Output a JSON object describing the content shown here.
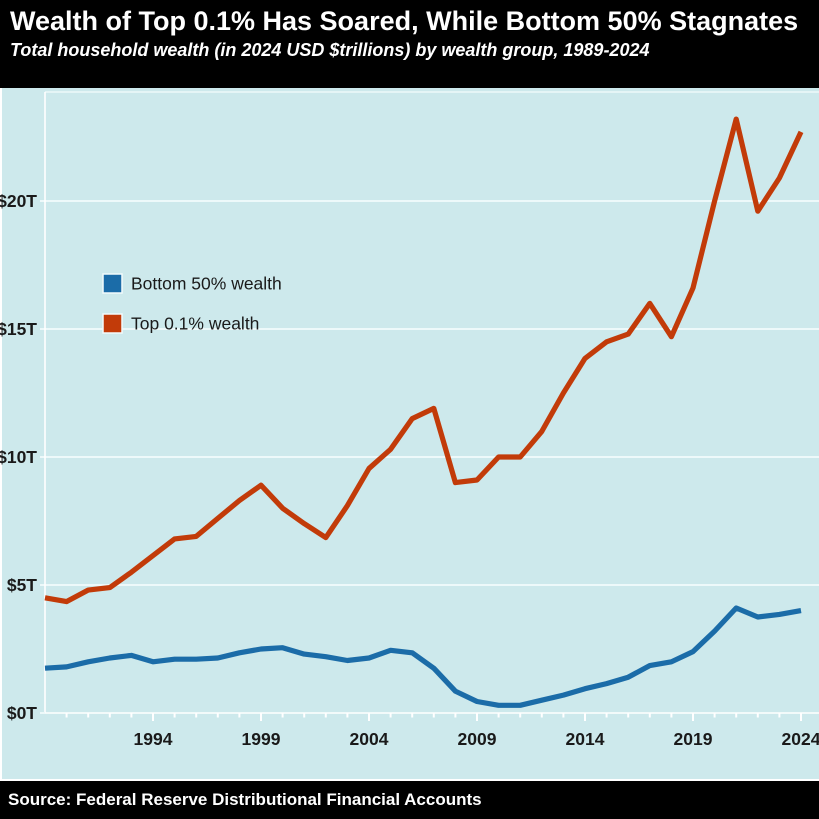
{
  "header": {
    "title": "Wealth of Top 0.1% Has Soared, While Bottom 50% Stagnates",
    "subtitle": "Total household wealth (in 2024 USD $trillions) by wealth group, 1989-2024"
  },
  "footer": {
    "source": "Source: Federal Reserve Distributional Financial Accounts"
  },
  "colors": {
    "background": "#cde9ec",
    "header_bg": "#000000",
    "header_text": "#ffffff",
    "gridline": "#edf9fa",
    "axis": "#ffffff",
    "tick": "#ffffff",
    "axis_label_text": "#1a1a1a",
    "bottom50_line": "#1b6ca8",
    "top01_line": "#c23b09"
  },
  "chart_data": {
    "type": "line",
    "title": "Wealth of Top 0.1% Has Soared, While Bottom 50% Stagnates",
    "subtitle": "Total household wealth (in 2024 USD $trillions) by wealth group, 1989-2024",
    "xlabel": "",
    "ylabel": "Total household wealth (2024 USD $trillions)",
    "grid": true,
    "legend_position": "upper-left-inside",
    "x_range": [
      1989,
      2024
    ],
    "ylim": [
      0,
      24.3
    ],
    "x": [
      1989,
      1990,
      1991,
      1992,
      1993,
      1994,
      1995,
      1996,
      1997,
      1998,
      1999,
      2000,
      2001,
      2002,
      2003,
      2004,
      2005,
      2006,
      2007,
      2008,
      2009,
      2010,
      2011,
      2012,
      2013,
      2014,
      2015,
      2016,
      2017,
      2018,
      2019,
      2020,
      2021,
      2022,
      2023,
      2024
    ],
    "xtick_labels": [
      1994,
      1999,
      2004,
      2009,
      2014,
      2019,
      2024
    ],
    "ytick_labels": [
      {
        "value": 0,
        "label": "$0T"
      },
      {
        "value": 5,
        "label": "$5T"
      },
      {
        "value": 10,
        "label": "$10T"
      },
      {
        "value": 15,
        "label": "$15T"
      },
      {
        "value": 20,
        "label": "$20T"
      }
    ],
    "series": [
      {
        "name": "Bottom 50% wealth",
        "color": "#1b6ca8",
        "values": [
          1.75,
          1.8,
          2.0,
          2.15,
          2.25,
          2.0,
          2.1,
          2.1,
          2.15,
          2.35,
          2.5,
          2.55,
          2.3,
          2.2,
          2.05,
          2.15,
          2.45,
          2.35,
          1.75,
          0.85,
          0.45,
          0.3,
          0.3,
          0.5,
          0.7,
          0.95,
          1.15,
          1.4,
          1.85,
          2.0,
          2.4,
          3.2,
          4.1,
          3.75,
          3.85,
          4.0
        ]
      },
      {
        "name": "Top 0.1% wealth",
        "color": "#c23b09",
        "values": [
          4.5,
          4.35,
          4.8,
          4.9,
          5.5,
          6.15,
          6.8,
          6.9,
          7.6,
          8.3,
          8.9,
          8.0,
          7.4,
          6.85,
          8.1,
          9.55,
          10.3,
          11.5,
          11.9,
          9.0,
          9.1,
          10.0,
          10.0,
          11.0,
          12.5,
          13.85,
          14.5,
          14.8,
          16.0,
          14.7,
          16.6,
          20.0,
          23.2,
          19.6,
          20.9,
          22.7
        ]
      }
    ],
    "source": "Source: Federal Reserve Distributional Financial Accounts"
  }
}
